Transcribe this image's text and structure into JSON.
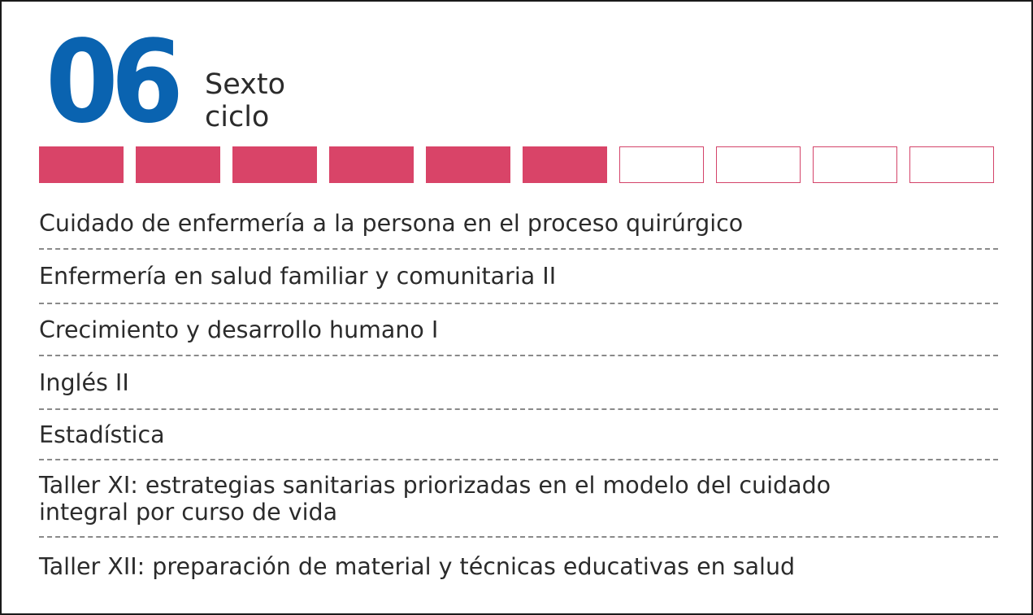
{
  "cycle": {
    "number": "06",
    "name_line1": "Sexto",
    "name_line2": "ciclo",
    "total_cycles": 10,
    "completed_cycles": 6,
    "colors": {
      "number": "#0a63b0",
      "progress_filled": "#d94468",
      "progress_outline": "#d4446a",
      "text": "#2b2b2b"
    }
  },
  "courses": [
    "Cuidado de enfermería a la persona en el proceso quirúrgico",
    "Enfermería en salud familiar y comunitaria II",
    "Crecimiento y desarrollo humano I",
    "Inglés II",
    "Estadística",
    "Taller XI: estrategias sanitarias priorizadas en el modelo del cuidado\nintegral por curso de vida",
    "Taller XII: preparación de material y técnicas educativas en salud"
  ]
}
